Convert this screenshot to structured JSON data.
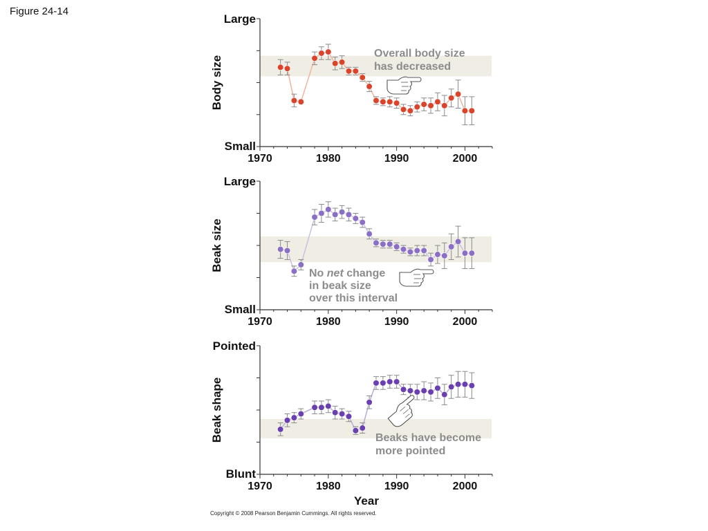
{
  "figure_label": "Figure 24-14",
  "copyright": "Copyright © 2008 Pearson Benjamin Cummings. All rights reserved.",
  "colors": {
    "band": "#efede4",
    "axis": "#333333",
    "errorbar": "#8a8a8a",
    "annotation": "#8c8c8c",
    "body_series": "#d9442b",
    "body_line": "#f0b39f",
    "beak_size_series": "#8a6fc4",
    "beak_size_line": "#c9c1e3",
    "beak_shape_series": "#6a3fb0",
    "beak_shape_line": "#b7abd8"
  },
  "icons": [
    "pointing-hand-icon"
  ],
  "chart_data": [
    {
      "type": "scatter",
      "ylabel": "Body size",
      "y_top_label": "Large",
      "y_bottom_label": "Small",
      "xlabel": "",
      "x_ticks": [
        "1970",
        "1980",
        "1990",
        "2000"
      ],
      "xlim": [
        1970,
        2004
      ],
      "ylim": [
        0,
        1
      ],
      "band": [
        0.55,
        0.71
      ],
      "annotation_lines": [
        {
          "parts": [
            {
              "text": "Overall body size",
              "italic": false
            }
          ]
        },
        {
          "parts": [
            {
              "text": "has decreased",
              "italic": false
            }
          ]
        }
      ],
      "series": [
        {
          "color_key": "body_series",
          "line_color_key": "body_line",
          "x": [
            1973,
            1974,
            1975,
            1976,
            1978,
            1979,
            1980,
            1981,
            1982,
            1983,
            1984,
            1985,
            1986,
            1987,
            1988,
            1989,
            1990,
            1991,
            1992,
            1993,
            1994,
            1995,
            1996,
            1997,
            1998,
            1999,
            2000,
            2001
          ],
          "y": [
            0.62,
            0.61,
            0.36,
            0.35,
            0.69,
            0.73,
            0.74,
            0.65,
            0.66,
            0.59,
            0.59,
            0.54,
            0.47,
            0.36,
            0.35,
            0.35,
            0.34,
            0.29,
            0.28,
            0.31,
            0.33,
            0.32,
            0.35,
            0.32,
            0.38,
            0.41,
            0.28,
            0.28
          ],
          "err": [
            0.06,
            0.05,
            0.05,
            0.0,
            0.05,
            0.05,
            0.06,
            0.05,
            0.05,
            0.03,
            0.03,
            0.03,
            0.04,
            0.03,
            0.03,
            0.04,
            0.04,
            0.04,
            0.04,
            0.04,
            0.05,
            0.06,
            0.07,
            0.08,
            0.07,
            0.11,
            0.11,
            0.11
          ]
        }
      ]
    },
    {
      "type": "scatter",
      "ylabel": "Beak size",
      "y_top_label": "Large",
      "y_bottom_label": "Small",
      "xlabel": "",
      "x_ticks": [
        "1970",
        "1980",
        "1990",
        "2000"
      ],
      "xlim": [
        1970,
        2004
      ],
      "ylim": [
        0,
        1
      ],
      "band": [
        0.37,
        0.57
      ],
      "annotation_lines": [
        {
          "parts": [
            {
              "text": "No ",
              "italic": false
            },
            {
              "text": "net",
              "italic": true
            },
            {
              "text": " change",
              "italic": false
            }
          ]
        },
        {
          "parts": [
            {
              "text": "in beak size",
              "italic": false
            }
          ]
        },
        {
          "parts": [
            {
              "text": "over this interval",
              "italic": false
            }
          ]
        }
      ],
      "series": [
        {
          "color_key": "beak_size_series",
          "line_color_key": "beak_size_line",
          "x": [
            1973,
            1974,
            1975,
            1976,
            1978,
            1979,
            1980,
            1981,
            1982,
            1983,
            1984,
            1985,
            1986,
            1987,
            1988,
            1989,
            1990,
            1991,
            1992,
            1993,
            1994,
            1995,
            1996,
            1997,
            1998,
            1999,
            2000,
            2001
          ],
          "y": [
            0.47,
            0.46,
            0.3,
            0.35,
            0.72,
            0.75,
            0.78,
            0.74,
            0.76,
            0.74,
            0.71,
            0.68,
            0.59,
            0.52,
            0.51,
            0.51,
            0.49,
            0.47,
            0.45,
            0.46,
            0.46,
            0.39,
            0.43,
            0.42,
            0.49,
            0.53,
            0.44,
            0.44
          ],
          "err": [
            0.07,
            0.07,
            0.04,
            0.04,
            0.06,
            0.07,
            0.06,
            0.05,
            0.05,
            0.05,
            0.04,
            0.04,
            0.04,
            0.03,
            0.03,
            0.03,
            0.03,
            0.03,
            0.03,
            0.04,
            0.04,
            0.05,
            0.07,
            0.1,
            0.1,
            0.12,
            0.12,
            0.12
          ]
        }
      ]
    },
    {
      "type": "scatter",
      "ylabel": "Beak shape",
      "y_top_label": "Pointed",
      "y_bottom_label": "Blunt",
      "xlabel": "Year",
      "x_ticks": [
        "1970",
        "1980",
        "1990",
        "2000"
      ],
      "xlim": [
        1970,
        2004
      ],
      "ylim": [
        0,
        1
      ],
      "band": [
        0.28,
        0.43
      ],
      "annotation_lines": [
        {
          "parts": [
            {
              "text": "Beaks have become",
              "italic": false
            }
          ]
        },
        {
          "parts": [
            {
              "text": "more pointed",
              "italic": false
            }
          ]
        }
      ],
      "series": [
        {
          "color_key": "beak_shape_series",
          "line_color_key": "beak_shape_line",
          "x": [
            1973,
            1974,
            1975,
            1976,
            1978,
            1979,
            1980,
            1981,
            1982,
            1983,
            1984,
            1985,
            1986,
            1987,
            1988,
            1989,
            1990,
            1991,
            1992,
            1993,
            1994,
            1995,
            1996,
            1997,
            1998,
            1999,
            2000,
            2001
          ],
          "y": [
            0.35,
            0.42,
            0.44,
            0.47,
            0.52,
            0.52,
            0.53,
            0.48,
            0.47,
            0.45,
            0.34,
            0.36,
            0.56,
            0.71,
            0.71,
            0.72,
            0.72,
            0.66,
            0.65,
            0.64,
            0.65,
            0.64,
            0.67,
            0.62,
            0.68,
            0.7,
            0.7,
            0.69
          ],
          "err": [
            0.05,
            0.05,
            0.04,
            0.04,
            0.05,
            0.05,
            0.05,
            0.05,
            0.04,
            0.04,
            0.03,
            0.04,
            0.05,
            0.05,
            0.05,
            0.05,
            0.05,
            0.04,
            0.05,
            0.06,
            0.07,
            0.07,
            0.08,
            0.08,
            0.09,
            0.1,
            0.1,
            0.1
          ]
        }
      ]
    }
  ]
}
